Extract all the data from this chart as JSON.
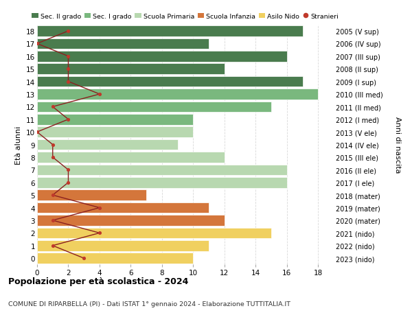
{
  "ages": [
    18,
    17,
    16,
    15,
    14,
    13,
    12,
    11,
    10,
    9,
    8,
    7,
    6,
    5,
    4,
    3,
    2,
    1,
    0
  ],
  "right_labels": [
    "2005 (V sup)",
    "2006 (IV sup)",
    "2007 (III sup)",
    "2008 (II sup)",
    "2009 (I sup)",
    "2010 (III med)",
    "2011 (II med)",
    "2012 (I med)",
    "2013 (V ele)",
    "2014 (IV ele)",
    "2015 (III ele)",
    "2016 (II ele)",
    "2017 (I ele)",
    "2018 (mater)",
    "2019 (mater)",
    "2020 (mater)",
    "2021 (nido)",
    "2022 (nido)",
    "2023 (nido)"
  ],
  "bar_values": [
    17,
    11,
    16,
    12,
    17,
    18,
    15,
    10,
    10,
    9,
    12,
    16,
    16,
    7,
    11,
    12,
    15,
    11,
    10
  ],
  "bar_colors": [
    "#4a7c4e",
    "#4a7c4e",
    "#4a7c4e",
    "#4a7c4e",
    "#4a7c4e",
    "#7ab87e",
    "#7ab87e",
    "#7ab87e",
    "#b8d8b0",
    "#b8d8b0",
    "#b8d8b0",
    "#b8d8b0",
    "#b8d8b0",
    "#d4763b",
    "#d4763b",
    "#d4763b",
    "#f0d060",
    "#f0d060",
    "#f0d060"
  ],
  "stranieri_values": [
    2,
    0,
    2,
    2,
    2,
    4,
    1,
    2,
    0,
    1,
    1,
    2,
    2,
    1,
    4,
    1,
    4,
    1,
    3
  ],
  "legend_labels": [
    "Sec. II grado",
    "Sec. I grado",
    "Scuola Primaria",
    "Scuola Infanzia",
    "Asilo Nido",
    "Stranieri"
  ],
  "legend_colors": [
    "#4a7c4e",
    "#7ab87e",
    "#b8d8b0",
    "#d4763b",
    "#f0d060",
    "#c0392b"
  ],
  "title": "Popolazione per età scolastica - 2024",
  "subtitle": "COMUNE DI RIPARBELLA (PI) - Dati ISTAT 1° gennaio 2024 - Elaborazione TUTTITALIA.IT",
  "ylabel_left": "Età alunni",
  "ylabel_right": "Anni di nascita",
  "bg_color": "#ffffff",
  "bar_edge_color": "white",
  "stranieri_line_color": "#8b2020",
  "stranieri_dot_color": "#c0392b",
  "grid_color": "#d8d8d8"
}
